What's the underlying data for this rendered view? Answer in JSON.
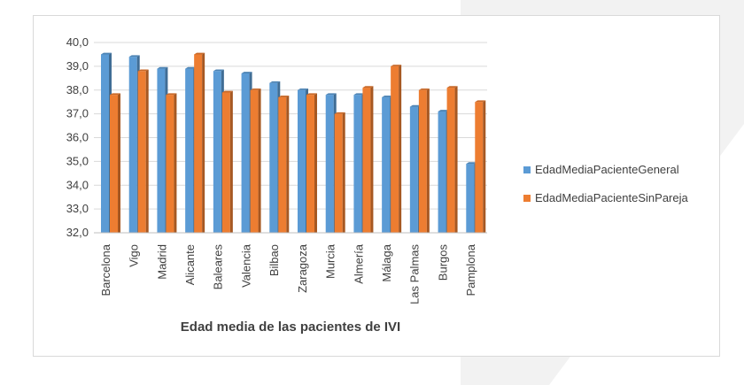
{
  "chart_data": {
    "type": "bar",
    "categories": [
      "Barcelona",
      "Vigo",
      "Madrid",
      "Alicante",
      "Baleares",
      "Valencia",
      "Bilbao",
      "Zaragoza",
      "Murcia",
      "Almería",
      "Málaga",
      "Las Palmas",
      "Burgos",
      "Pamplona"
    ],
    "series": [
      {
        "name": "EdadMediaPacienteGeneral",
        "color": "#5b9bd5",
        "values": [
          39.5,
          39.4,
          38.9,
          38.9,
          38.8,
          38.7,
          38.3,
          38.0,
          37.8,
          37.8,
          37.7,
          37.3,
          37.1,
          34.9
        ]
      },
      {
        "name": "EdadMediaPacienteSinPareja",
        "color": "#ed7d31",
        "values": [
          37.8,
          38.8,
          37.8,
          39.5,
          37.9,
          38.0,
          37.7,
          37.8,
          37.0,
          38.1,
          39.0,
          38.0,
          38.1,
          37.5
        ]
      }
    ],
    "title": "",
    "xlabel": "Edad media de las pacientes de IVI",
    "ylabel": "",
    "ylim": [
      32.0,
      40.0
    ],
    "yticks": [
      "32,0",
      "33,0",
      "34,0",
      "35,0",
      "36,0",
      "37,0",
      "38,0",
      "39,0",
      "40,0"
    ],
    "grid": true,
    "legend_position": "right"
  }
}
